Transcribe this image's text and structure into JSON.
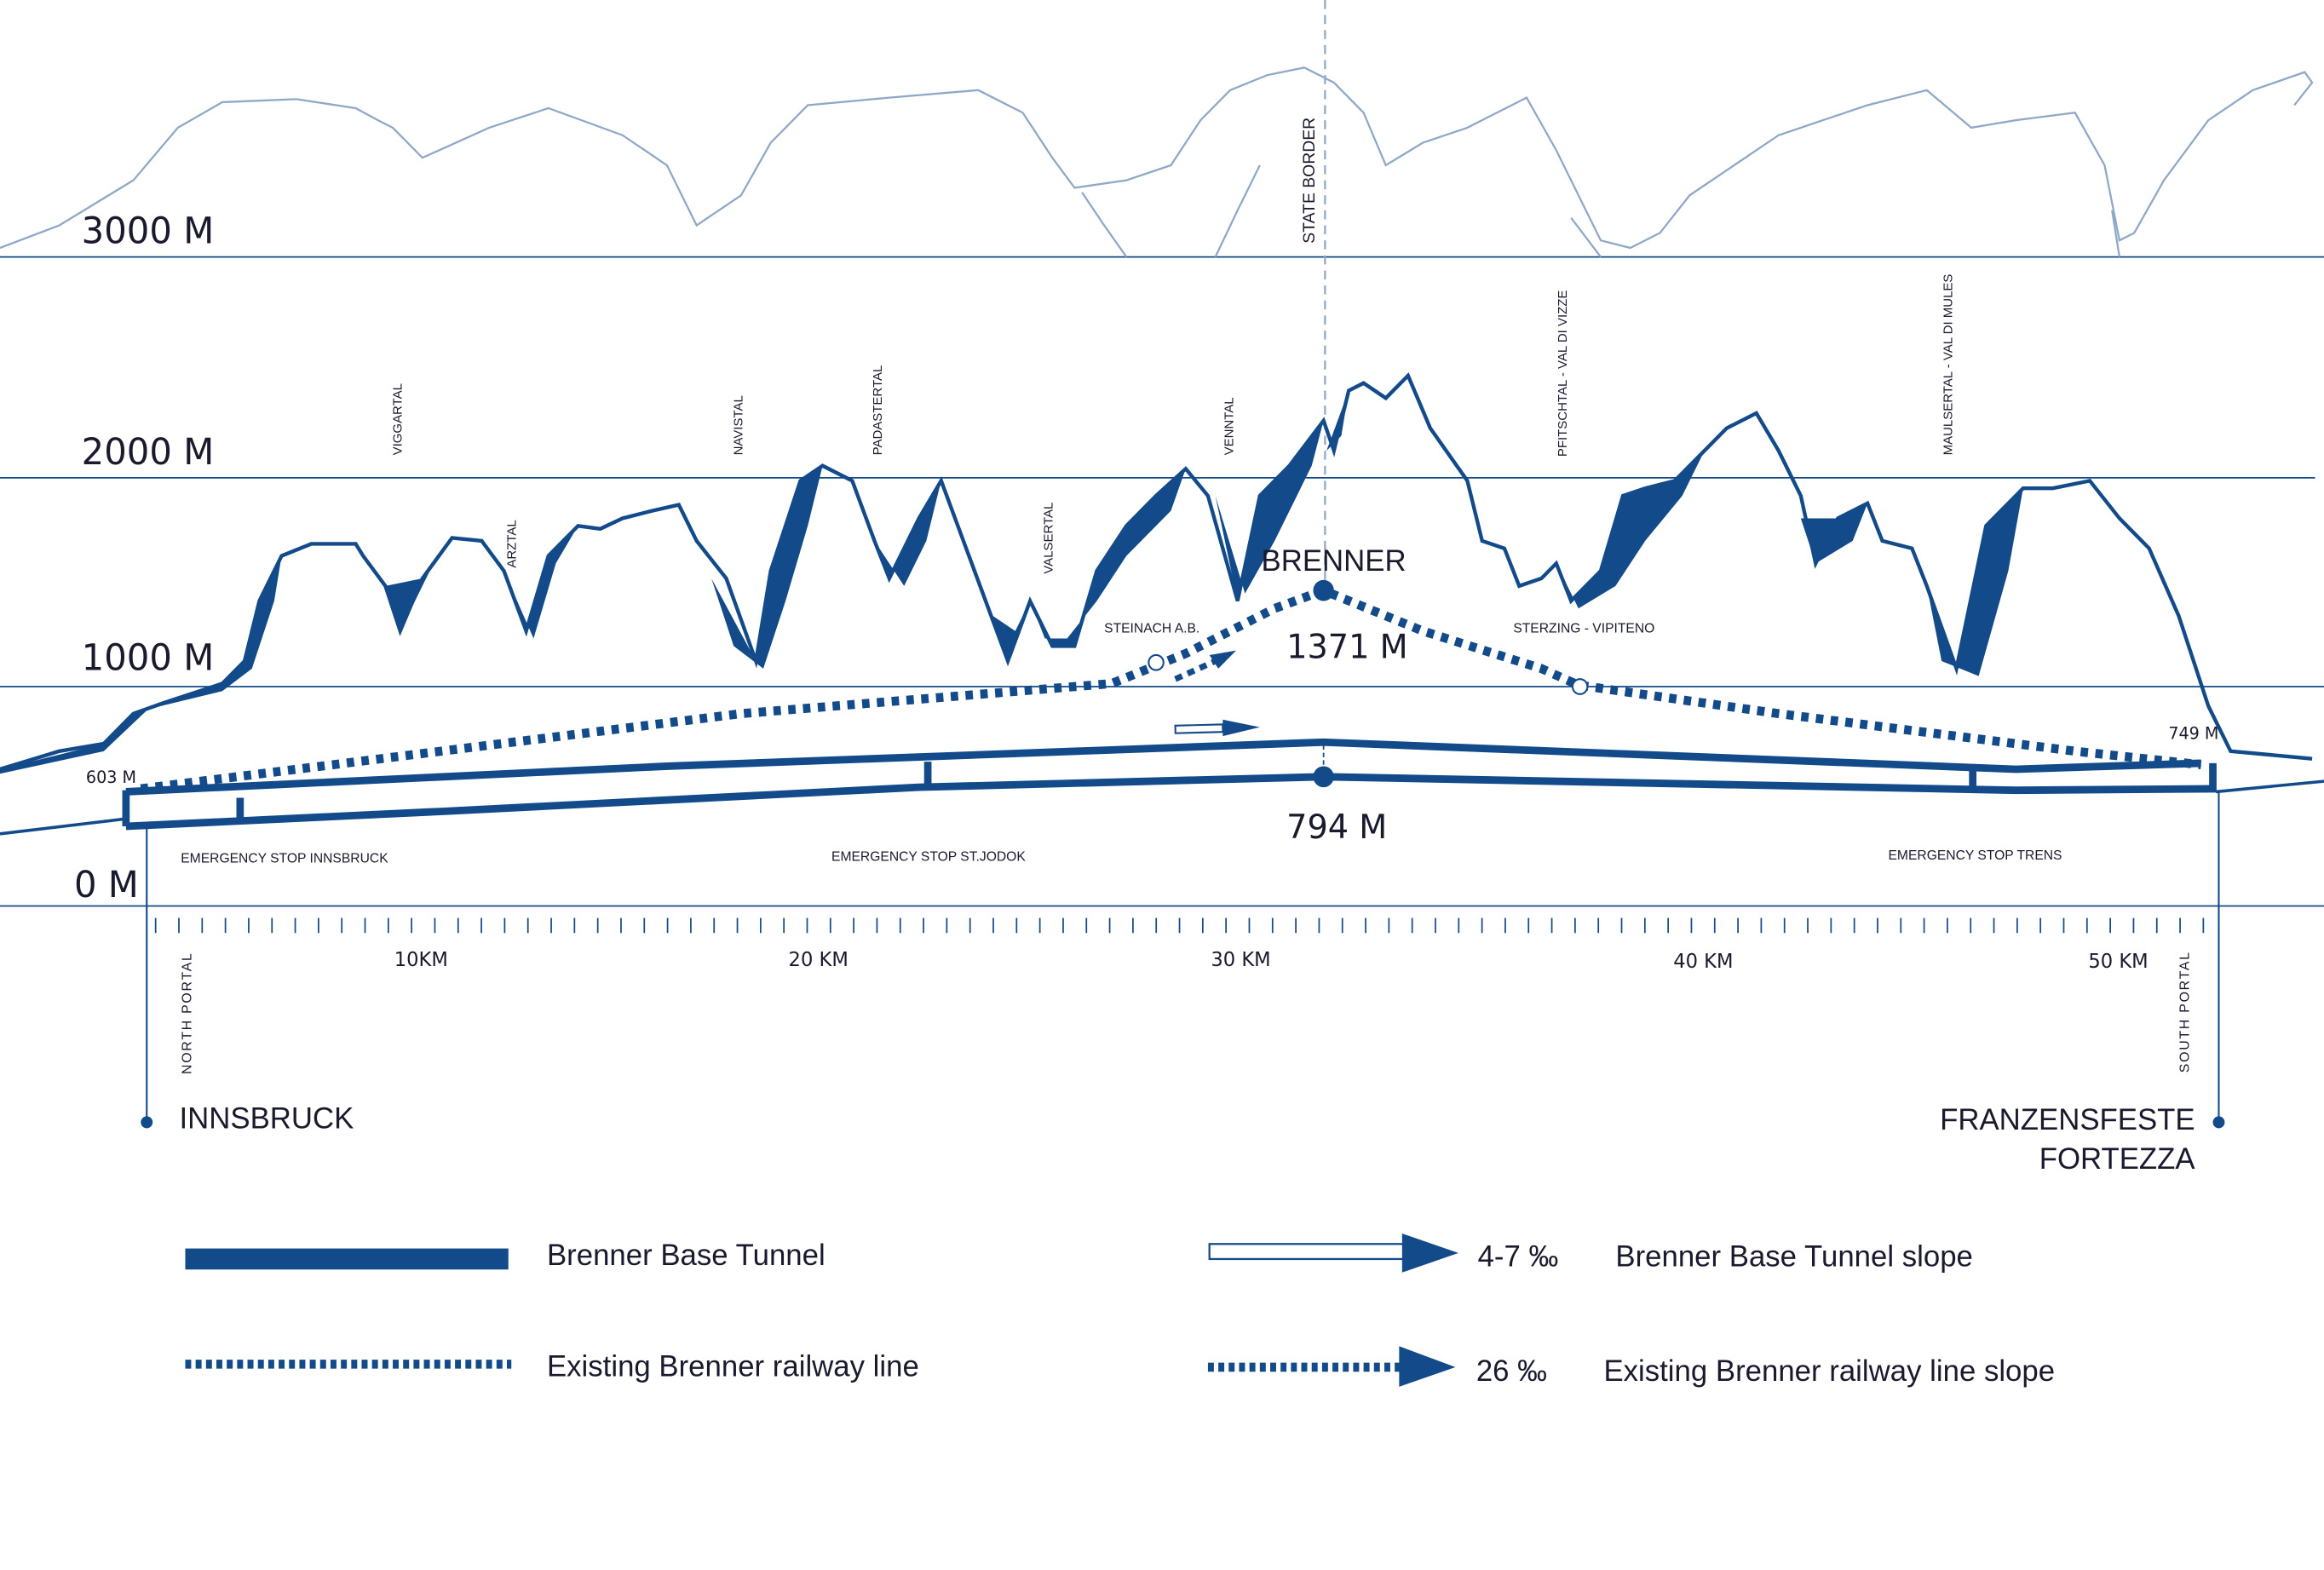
{
  "colors": {
    "primary": "#124a8a",
    "light": "#8fa8c8"
  },
  "elevations": {
    "m3000": "3000 M",
    "m2000": "2000 M",
    "m1000": "1000 M",
    "m0": "0 M"
  },
  "valleys": [
    "VIGGARTAL",
    "ARZTAL",
    "NAVISTAL",
    "PADASTERTAL",
    "VALSERTAL",
    "VENNTAL",
    "PFITSCHTAL - VAL DI VIZZE",
    "MAULSERTAL - VAL DI MULES"
  ],
  "state_border": "STATE BORDER",
  "brenner": {
    "name": "BRENNER",
    "height_existing": "1371 M",
    "height_tunnel": "794 M"
  },
  "stations": {
    "steinach": "STEINACH A.B.",
    "sterzing": "STERZING - VIPITENO"
  },
  "portals": {
    "north_height": "603 M",
    "south_height": "749 M",
    "north": "NORTH PORTAL",
    "south": "SOUTH PORTAL"
  },
  "emergency_stops": [
    "EMERGENCY  STOP INNSBRUCK",
    "EMERGENCY STOP ST.JODOK",
    "EMERGENCY STOP TRENS"
  ],
  "km_labels": [
    "10KM",
    "20 KM",
    "30 KM",
    "40 KM",
    "50 KM"
  ],
  "cities": {
    "north": "INNSBRUCK",
    "south_line1": "FRANZENSFESTE",
    "south_line2": "FORTEZZA"
  },
  "legend": {
    "tunnel": "Brenner Base Tunnel",
    "railway": "Existing Brenner railway line",
    "tunnel_slope_value": "4-7 ‰",
    "tunnel_slope": "Brenner Base Tunnel slope",
    "railway_slope_value": "26 ‰",
    "railway_slope": "Existing Brenner railway line slope"
  }
}
